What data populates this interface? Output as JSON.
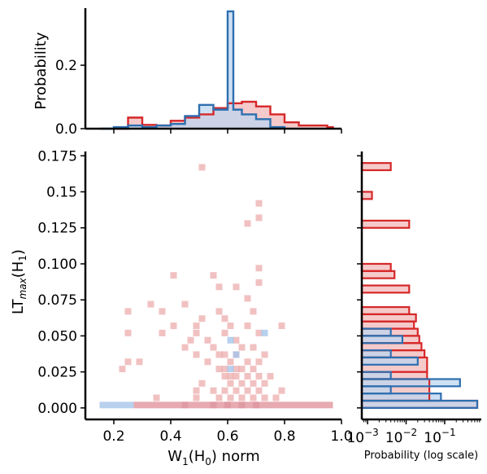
{
  "chart_data": [
    {
      "type": "histogram",
      "panel": "top-marginal",
      "ylabel": "Probability",
      "xlim": [
        0.1,
        1.0
      ],
      "ylim": [
        0,
        0.38
      ],
      "yticks": [
        {
          "v": 0.0,
          "label": "0.0"
        },
        {
          "v": 0.2,
          "label": "0.2"
        }
      ],
      "series": [
        {
          "color": "#d62728",
          "fill": "#f2b8b8",
          "edges": [
            0.2,
            0.25,
            0.3,
            0.35,
            0.4,
            0.45,
            0.5,
            0.55,
            0.6,
            0.65,
            0.7,
            0.75,
            0.8,
            0.85,
            0.9,
            0.95,
            0.97
          ],
          "values": [
            0.0,
            0.035,
            0.012,
            0.01,
            0.025,
            0.035,
            0.045,
            0.065,
            0.08,
            0.085,
            0.07,
            0.045,
            0.02,
            0.01,
            0.01,
            0.005
          ]
        },
        {
          "color": "#2d6fb0",
          "fill": "#bdd5ef",
          "edges": [
            0.15,
            0.2,
            0.25,
            0.3,
            0.35,
            0.4,
            0.45,
            0.5,
            0.55,
            0.6,
            0.62,
            0.65,
            0.7,
            0.75,
            0.8
          ],
          "values": [
            0.0,
            0.005,
            0.01,
            0.005,
            0.01,
            0.015,
            0.04,
            0.075,
            0.06,
            0.37,
            0.06,
            0.045,
            0.03,
            0.005
          ]
        }
      ]
    },
    {
      "type": "heatmap",
      "panel": "main",
      "xlabel": "W",
      "xlabel_sub": "1",
      "xlabel_mid": "(H",
      "xlabel_sub2": "0",
      "xlabel_end": ") norm",
      "ylabel": "LT",
      "ylabel_sub": "max",
      "ylabel_mid": "(H",
      "ylabel_sub2": "1",
      "ylabel_end": ")",
      "xlim": [
        0.1,
        1.0
      ],
      "ylim": [
        -0.008,
        0.178
      ],
      "xticks": [
        {
          "v": 0.2,
          "label": "0.2"
        },
        {
          "v": 0.4,
          "label": "0.4"
        },
        {
          "v": 0.6,
          "label": "0.6"
        },
        {
          "v": 0.8,
          "label": "0.8"
        },
        {
          "v": 1.0,
          "label": "1.0"
        }
      ],
      "yticks": [
        {
          "v": 0.0,
          "label": "0.000"
        },
        {
          "v": 0.025,
          "label": "0.025"
        },
        {
          "v": 0.05,
          "label": "0.050"
        },
        {
          "v": 0.075,
          "label": "0.075"
        },
        {
          "v": 0.1,
          "label": "0.100"
        },
        {
          "v": 0.125,
          "label": "0.125"
        },
        {
          "v": 0.15,
          "label": "0.15"
        },
        {
          "v": 0.175,
          "label": "0.175"
        }
      ],
      "red_cells": [
        [
          0.51,
          0.167
        ],
        [
          0.71,
          0.142
        ],
        [
          0.71,
          0.132
        ],
        [
          0.67,
          0.128
        ],
        [
          0.41,
          0.092
        ],
        [
          0.55,
          0.092
        ],
        [
          0.71,
          0.097
        ],
        [
          0.71,
          0.087
        ],
        [
          0.57,
          0.084
        ],
        [
          0.63,
          0.084
        ],
        [
          0.67,
          0.076
        ],
        [
          0.33,
          0.072
        ],
        [
          0.45,
          0.072
        ],
        [
          0.25,
          0.067
        ],
        [
          0.37,
          0.067
        ],
        [
          0.57,
          0.067
        ],
        [
          0.69,
          0.067
        ],
        [
          0.59,
          0.062
        ],
        [
          0.51,
          0.062
        ],
        [
          0.41,
          0.057
        ],
        [
          0.49,
          0.057
        ],
        [
          0.61,
          0.057
        ],
        [
          0.67,
          0.057
        ],
        [
          0.79,
          0.057
        ],
        [
          0.25,
          0.052
        ],
        [
          0.37,
          0.052
        ],
        [
          0.49,
          0.052
        ],
        [
          0.59,
          0.052
        ],
        [
          0.71,
          0.052
        ],
        [
          0.47,
          0.047
        ],
        [
          0.53,
          0.047
        ],
        [
          0.63,
          0.047
        ],
        [
          0.65,
          0.042
        ],
        [
          0.45,
          0.042
        ],
        [
          0.55,
          0.042
        ],
        [
          0.69,
          0.042
        ],
        [
          0.49,
          0.037
        ],
        [
          0.57,
          0.037
        ],
        [
          0.59,
          0.037
        ],
        [
          0.63,
          0.037
        ],
        [
          0.73,
          0.037
        ],
        [
          0.25,
          0.032
        ],
        [
          0.29,
          0.032
        ],
        [
          0.53,
          0.032
        ],
        [
          0.61,
          0.032
        ],
        [
          0.67,
          0.032
        ],
        [
          0.71,
          0.032
        ],
        [
          0.23,
          0.027
        ],
        [
          0.57,
          0.027
        ],
        [
          0.59,
          0.027
        ],
        [
          0.63,
          0.027
        ],
        [
          0.65,
          0.027
        ],
        [
          0.69,
          0.027
        ],
        [
          0.59,
          0.022
        ],
        [
          0.61,
          0.022
        ],
        [
          0.63,
          0.022
        ],
        [
          0.67,
          0.022
        ],
        [
          0.71,
          0.022
        ],
        [
          0.75,
          0.022
        ],
        [
          0.51,
          0.017
        ],
        [
          0.61,
          0.017
        ],
        [
          0.65,
          0.017
        ],
        [
          0.69,
          0.017
        ],
        [
          0.73,
          0.017
        ],
        [
          0.49,
          0.012
        ],
        [
          0.55,
          0.012
        ],
        [
          0.59,
          0.012
        ],
        [
          0.63,
          0.012
        ],
        [
          0.67,
          0.012
        ],
        [
          0.71,
          0.012
        ],
        [
          0.79,
          0.012
        ],
        [
          0.35,
          0.007
        ],
        [
          0.49,
          0.007
        ],
        [
          0.57,
          0.007
        ],
        [
          0.61,
          0.007
        ],
        [
          0.65,
          0.007
        ],
        [
          0.69,
          0.007
        ],
        [
          0.73,
          0.007
        ],
        [
          0.77,
          0.007
        ]
      ],
      "blue_cells": [
        [
          0.73,
          0.052
        ],
        [
          0.61,
          0.047
        ],
        [
          0.63,
          0.037
        ],
        [
          0.61,
          0.027
        ]
      ],
      "bottom_row": {
        "y": 0.002,
        "x_start": 0.15,
        "x_end": 0.97,
        "blue_end": 0.27
      }
    },
    {
      "type": "histogram",
      "panel": "right-marginal",
      "orientation": "horizontal",
      "xlabel": "Probability (log scale)",
      "xscale": "log",
      "xlim_exp": [
        -3.15,
        -0.05
      ],
      "xticks": [
        {
          "b": "10",
          "e": "−3",
          "v": -3
        },
        {
          "b": "10",
          "e": "−2",
          "v": -2
        },
        {
          "b": "10",
          "e": "−1",
          "v": -1
        }
      ],
      "series": [
        {
          "color": "#d62728",
          "fill": "#f2b8b8",
          "bins": [
            {
              "y0": 0.165,
              "y1": 0.17,
              "p": 0.004
            },
            {
              "y0": 0.145,
              "y1": 0.15,
              "p": 0.0013
            },
            {
              "y0": 0.125,
              "y1": 0.13,
              "p": 0.012
            },
            {
              "y0": 0.095,
              "y1": 0.1,
              "p": 0.004
            },
            {
              "y0": 0.09,
              "y1": 0.095,
              "p": 0.005
            },
            {
              "y0": 0.08,
              "y1": 0.085,
              "p": 0.012
            },
            {
              "y0": 0.065,
              "y1": 0.07,
              "p": 0.012
            },
            {
              "y0": 0.06,
              "y1": 0.065,
              "p": 0.018
            },
            {
              "y0": 0.055,
              "y1": 0.06,
              "p": 0.016
            },
            {
              "y0": 0.05,
              "y1": 0.055,
              "p": 0.02
            },
            {
              "y0": 0.045,
              "y1": 0.05,
              "p": 0.022
            },
            {
              "y0": 0.04,
              "y1": 0.045,
              "p": 0.025
            },
            {
              "y0": 0.035,
              "y1": 0.04,
              "p": 0.03
            },
            {
              "y0": 0.025,
              "y1": 0.035,
              "p": 0.035
            },
            {
              "y0": 0.02,
              "y1": 0.025,
              "p": 0.035
            },
            {
              "y0": 0.005,
              "y1": 0.02,
              "p": 0.04
            },
            {
              "y0": 0.0,
              "y1": 0.005,
              "p": 0.7
            }
          ]
        },
        {
          "color": "#2d6fb0",
          "fill": "#bdd5ef",
          "bins": [
            {
              "y0": 0.05,
              "y1": 0.055,
              "p": 0.004
            },
            {
              "y0": 0.045,
              "y1": 0.05,
              "p": 0.008
            },
            {
              "y0": 0.035,
              "y1": 0.04,
              "p": 0.004
            },
            {
              "y0": 0.03,
              "y1": 0.035,
              "p": 0.02
            },
            {
              "y0": 0.02,
              "y1": 0.025,
              "p": 0.004
            },
            {
              "y0": 0.015,
              "y1": 0.02,
              "p": 0.25
            },
            {
              "y0": 0.01,
              "y1": 0.015,
              "p": 0.004
            },
            {
              "y0": 0.005,
              "y1": 0.01,
              "p": 0.08
            },
            {
              "y0": 0.0,
              "y1": 0.005,
              "p": 0.7
            }
          ]
        }
      ]
    }
  ]
}
